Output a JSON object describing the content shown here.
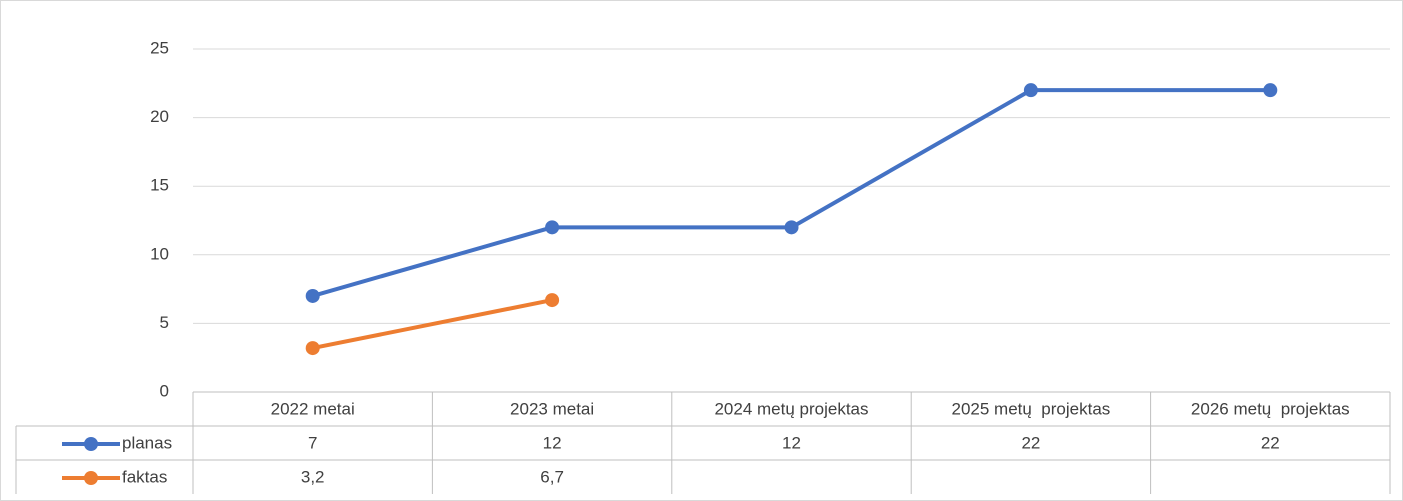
{
  "chart_data": {
    "type": "line",
    "categories": [
      "2022 metai",
      "2023 metai",
      "2024 metų projektas",
      "2025 metų  projektas",
      "2026 metų  projektas"
    ],
    "series": [
      {
        "name": "planas",
        "color": "#4472c4",
        "values": [
          7,
          12,
          12,
          22,
          22
        ]
      },
      {
        "name": "faktas",
        "color": "#ed7d31",
        "values": [
          3.2,
          6.7,
          null,
          null,
          null
        ],
        "value_labels": [
          "3,2",
          "6,7",
          null,
          null,
          null
        ]
      }
    ],
    "ylim": [
      0,
      25
    ],
    "yticks": [
      0,
      5,
      10,
      15,
      20,
      25
    ],
    "grid": true,
    "data_table": true
  }
}
